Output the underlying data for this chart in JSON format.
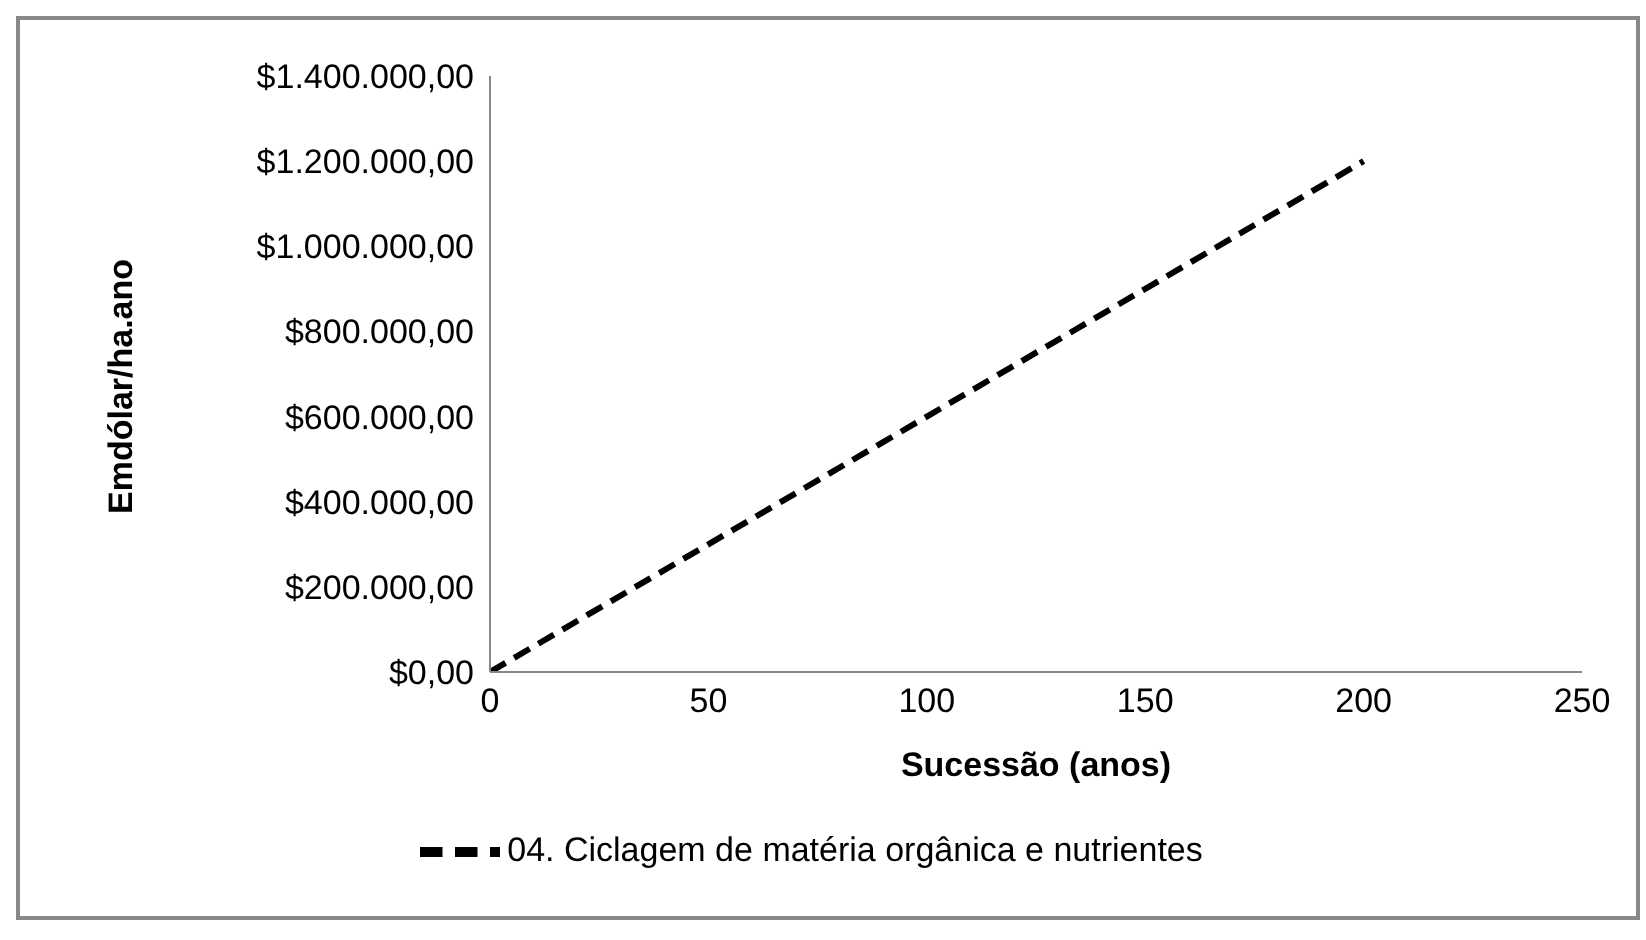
{
  "chart_data": {
    "type": "line",
    "xlabel": "Sucessão (anos)",
    "ylabel": "Emdólar/ha.ano",
    "x": [
      0,
      50,
      100,
      150,
      200
    ],
    "series": [
      {
        "name": "04. Ciclagem de matéria orgânica e nutrientes",
        "color": "#000000",
        "values": [
          0,
          300000,
          600000,
          900000,
          1200000
        ]
      }
    ],
    "xlim": [
      0,
      250
    ],
    "xticks": [
      0,
      50,
      100,
      150,
      200,
      250
    ],
    "ylim": [
      0,
      1400000
    ],
    "yticks": [
      {
        "value": 0,
        "label": "$0,00"
      },
      {
        "value": 200000,
        "label": "$200.000,00"
      },
      {
        "value": 400000,
        "label": "$400.000,00"
      },
      {
        "value": 600000,
        "label": "$600.000,00"
      },
      {
        "value": 800000,
        "label": "$800.000,00"
      },
      {
        "value": 1000000,
        "label": "$1.000.000,00"
      },
      {
        "value": 1200000,
        "label": "$1.200.000,00"
      },
      {
        "value": 1400000,
        "label": "$1.400.000,00"
      }
    ],
    "grid": false,
    "legend": "bottom",
    "marker": "none",
    "line_style": "dashed"
  }
}
